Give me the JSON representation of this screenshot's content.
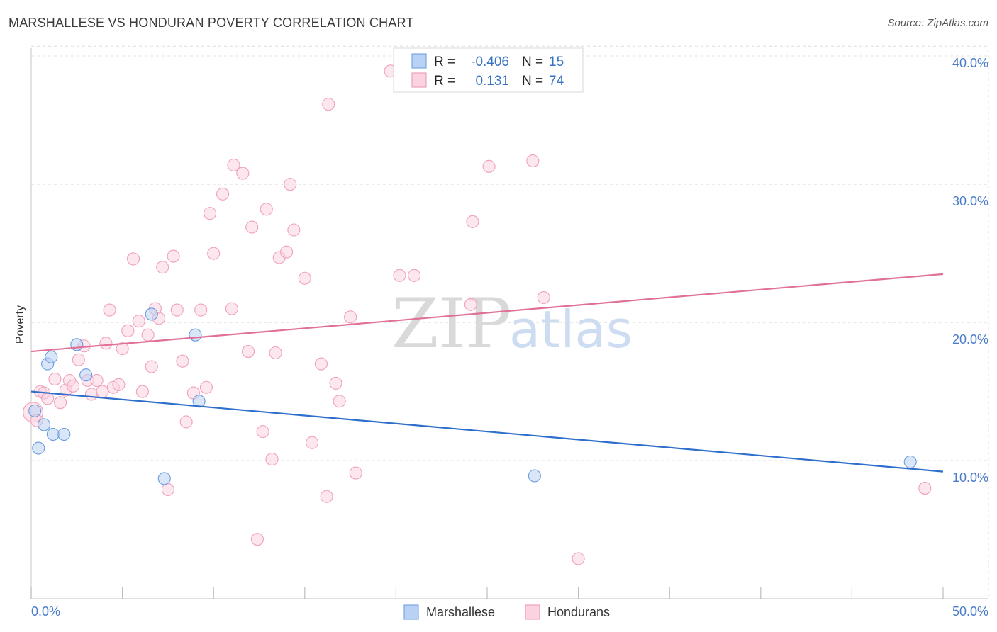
{
  "title": "MARSHALLESE VS HONDURAN POVERTY CORRELATION CHART",
  "source": "Source: ZipAtlas.com",
  "watermark": {
    "zip": "ZIP",
    "atlas": "atlas"
  },
  "chart_data": {
    "type": "scatter",
    "ylabel": "Poverty",
    "xlim": [
      0,
      50
    ],
    "ylim": [
      0,
      41.5
    ],
    "x_tick_labels": {
      "left": "0.0%",
      "right": "50.0%"
    },
    "y_ticks": [
      {
        "value": 10,
        "label": "10.0%"
      },
      {
        "value": 20,
        "label": "20.0%"
      },
      {
        "value": 30,
        "label": "30.0%"
      },
      {
        "value": 40,
        "label": "40.0%"
      }
    ],
    "grid": true,
    "legend_position": "top-center",
    "series": [
      {
        "name": "Marshallese",
        "color": "#6a9be0",
        "fill": "#b9d1f3",
        "line_color": "#2f6fcc",
        "r_label": "R =",
        "r_value": "-0.406",
        "n_label": "N =",
        "n_value": "15",
        "trend": {
          "x": [
            0,
            50
          ],
          "y": [
            15.0,
            9.2
          ]
        },
        "points": [
          [
            0.2,
            13.6
          ],
          [
            0.4,
            10.9
          ],
          [
            0.7,
            12.6
          ],
          [
            0.9,
            17.0
          ],
          [
            1.1,
            17.5
          ],
          [
            1.2,
            11.9
          ],
          [
            1.8,
            11.9
          ],
          [
            2.5,
            18.4
          ],
          [
            3.0,
            16.2
          ],
          [
            6.6,
            20.6
          ],
          [
            7.3,
            8.7
          ],
          [
            9.0,
            19.1
          ],
          [
            9.2,
            14.3
          ],
          [
            27.6,
            8.9
          ],
          [
            48.2,
            9.9
          ]
        ]
      },
      {
        "name": "Hondurans",
        "color": "#f0a0bb",
        "fill": "#fbd3e0",
        "line_color": "#e07098",
        "r_label": "R =",
        "r_value": "0.131",
        "n_label": "N =",
        "n_value": "74",
        "trend": {
          "x": [
            0,
            50
          ],
          "y": [
            17.9,
            23.5
          ]
        },
        "points": [
          [
            0.1,
            13.5
          ],
          [
            0.3,
            12.9
          ],
          [
            0.5,
            15.0
          ],
          [
            0.7,
            14.9
          ],
          [
            0.9,
            14.5
          ],
          [
            1.3,
            15.9
          ],
          [
            1.6,
            14.2
          ],
          [
            1.9,
            15.1
          ],
          [
            2.1,
            15.8
          ],
          [
            2.3,
            15.4
          ],
          [
            2.6,
            17.3
          ],
          [
            2.9,
            18.3
          ],
          [
            3.1,
            15.8
          ],
          [
            3.3,
            14.8
          ],
          [
            3.6,
            15.8
          ],
          [
            3.9,
            15.0
          ],
          [
            4.1,
            18.5
          ],
          [
            4.3,
            20.9
          ],
          [
            4.5,
            15.3
          ],
          [
            4.8,
            15.5
          ],
          [
            5.0,
            18.1
          ],
          [
            5.3,
            19.4
          ],
          [
            5.6,
            24.6
          ],
          [
            5.9,
            20.1
          ],
          [
            6.1,
            15.0
          ],
          [
            6.4,
            19.1
          ],
          [
            6.6,
            16.8
          ],
          [
            6.8,
            21.0
          ],
          [
            7.0,
            20.3
          ],
          [
            7.2,
            24.0
          ],
          [
            7.5,
            7.9
          ],
          [
            7.8,
            24.8
          ],
          [
            8.0,
            20.9
          ],
          [
            8.3,
            17.2
          ],
          [
            8.5,
            12.8
          ],
          [
            8.9,
            14.9
          ],
          [
            9.3,
            20.9
          ],
          [
            9.6,
            15.3
          ],
          [
            9.8,
            27.9
          ],
          [
            10.0,
            25.0
          ],
          [
            10.5,
            29.3
          ],
          [
            11.0,
            21.0
          ],
          [
            11.1,
            31.4
          ],
          [
            11.6,
            30.8
          ],
          [
            11.9,
            17.9
          ],
          [
            12.1,
            26.9
          ],
          [
            12.4,
            4.3
          ],
          [
            12.7,
            12.1
          ],
          [
            12.9,
            28.2
          ],
          [
            13.2,
            10.1
          ],
          [
            13.4,
            17.8
          ],
          [
            13.6,
            24.7
          ],
          [
            14.0,
            25.1
          ],
          [
            14.2,
            30.0
          ],
          [
            14.4,
            26.7
          ],
          [
            15.0,
            23.2
          ],
          [
            15.4,
            11.3
          ],
          [
            15.9,
            17.0
          ],
          [
            16.2,
            7.4
          ],
          [
            16.3,
            35.8
          ],
          [
            16.7,
            15.6
          ],
          [
            16.9,
            14.3
          ],
          [
            17.5,
            20.4
          ],
          [
            17.8,
            9.1
          ],
          [
            19.7,
            38.2
          ],
          [
            20.2,
            23.4
          ],
          [
            21.0,
            23.4
          ],
          [
            24.2,
            27.3
          ],
          [
            24.1,
            21.3
          ],
          [
            25.1,
            31.3
          ],
          [
            27.5,
            31.7
          ],
          [
            28.1,
            21.8
          ],
          [
            30.0,
            2.9
          ],
          [
            49.0,
            8.0
          ]
        ]
      }
    ]
  }
}
